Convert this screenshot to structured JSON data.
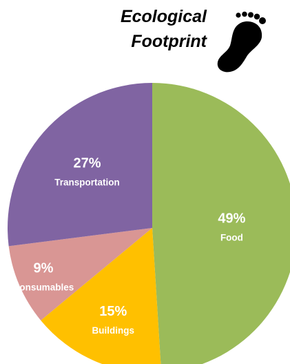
{
  "chart_data": {
    "type": "pie",
    "title_lines": [
      "Ecological",
      "Footprint"
    ],
    "slices": [
      {
        "label": "Food",
        "value": 49,
        "value_label": "49%",
        "color": "#9bbb59"
      },
      {
        "label": "Buildings",
        "value": 15,
        "value_label": "15%",
        "color": "#ffc000"
      },
      {
        "label": "Consumables",
        "value": 9,
        "value_label": "9%",
        "color": "#d99694"
      },
      {
        "label": "Transportation",
        "value": 27,
        "value_label": "27%",
        "color": "#8064a2"
      }
    ],
    "start": "12 o'clock",
    "direction": "clockwise",
    "legend": "none",
    "labels": "inside slices"
  },
  "icon": {
    "name": "footprint-icon",
    "color": "#000000"
  }
}
